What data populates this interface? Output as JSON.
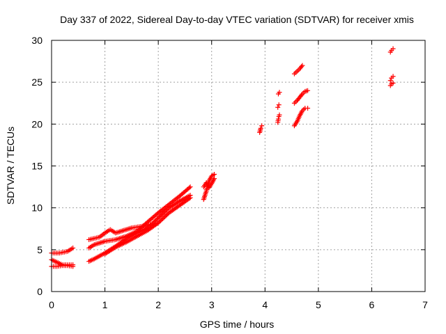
{
  "chart_data": {
    "type": "scatter",
    "title": "Day 337 of 2022, Sidereal Day-to-day VTEC variation (SDTVAR) for receiver xmis",
    "xlabel": "GPS time / hours",
    "ylabel": "SDTVAR / TECUs",
    "xlim": [
      0,
      7
    ],
    "ylim": [
      0,
      30
    ],
    "xticks": [
      "0",
      "1",
      "2",
      "3",
      "4",
      "5",
      "6",
      "7"
    ],
    "yticks": [
      "0",
      "5",
      "10",
      "15",
      "20",
      "25",
      "30"
    ],
    "grid": true,
    "marker": "plus",
    "color": "#ff0000",
    "segments": [
      {
        "x": [
          0.0,
          0.15,
          0.3,
          0.4
        ],
        "y": [
          4.6,
          4.6,
          4.8,
          5.2
        ]
      },
      {
        "x": [
          0.0,
          0.1,
          0.2,
          0.3,
          0.4
        ],
        "y": [
          3.8,
          3.5,
          3.2,
          3.2,
          3.2
        ]
      },
      {
        "x": [
          0.0,
          0.1,
          0.2,
          0.3,
          0.4
        ],
        "y": [
          3.0,
          3.0,
          3.1,
          3.1,
          3.0
        ]
      },
      {
        "x": [
          0.7,
          0.9,
          1.0,
          1.1,
          1.2,
          1.3,
          1.5,
          1.7,
          1.85
        ],
        "y": [
          6.2,
          6.5,
          7.0,
          7.4,
          7.0,
          7.2,
          7.6,
          7.8,
          8.0
        ]
      },
      {
        "x": [
          0.7,
          0.8,
          1.0,
          1.2,
          1.4,
          1.6,
          1.8,
          2.0,
          2.2,
          2.4,
          2.6
        ],
        "y": [
          5.2,
          5.6,
          6.0,
          6.2,
          6.6,
          7.2,
          8.3,
          9.4,
          10.4,
          11.4,
          12.5
        ]
      },
      {
        "x": [
          0.7,
          0.8,
          1.0,
          1.2,
          1.4,
          1.6,
          1.8,
          2.0,
          2.2,
          2.4,
          2.6
        ],
        "y": [
          3.6,
          3.9,
          4.6,
          5.4,
          6.3,
          7.0,
          7.6,
          8.8,
          10.0,
          10.8,
          11.5
        ]
      },
      {
        "x": [
          1.0,
          1.2,
          1.4,
          1.6,
          1.8,
          2.0,
          2.2,
          2.4,
          2.6
        ],
        "y": [
          4.5,
          5.3,
          5.9,
          6.6,
          7.3,
          8.2,
          9.4,
          10.3,
          11.2
        ]
      },
      {
        "x": [
          2.85,
          2.9,
          2.95,
          3.0,
          3.05
        ],
        "y": [
          11.0,
          12.0,
          13.2,
          13.8,
          14.0
        ]
      },
      {
        "x": [
          2.85,
          2.9,
          2.95,
          3.0,
          3.05
        ],
        "y": [
          12.5,
          13.0,
          12.4,
          12.9,
          13.5
        ]
      },
      {
        "x": [
          3.9,
          3.92,
          3.94
        ],
        "y": [
          19.0,
          19.5,
          19.8
        ]
      },
      {
        "x": [
          4.25,
          4.27
        ],
        "y": [
          23.6,
          23.8
        ]
      },
      {
        "x": [
          4.24,
          4.26
        ],
        "y": [
          22.0,
          22.3
        ]
      },
      {
        "x": [
          4.24,
          4.25,
          4.26,
          4.27
        ],
        "y": [
          20.2,
          20.6,
          20.9,
          21.1
        ]
      },
      {
        "x": [
          4.55,
          4.6,
          4.65,
          4.7
        ],
        "y": [
          26.0,
          26.3,
          26.6,
          27.0
        ]
      },
      {
        "x": [
          4.55,
          4.6,
          4.65,
          4.7,
          4.75,
          4.8
        ],
        "y": [
          22.5,
          22.8,
          23.2,
          23.6,
          23.9,
          24.0
        ]
      },
      {
        "x": [
          4.55,
          4.6,
          4.65,
          4.7,
          4.75,
          4.8
        ],
        "y": [
          19.8,
          20.3,
          21.0,
          21.6,
          21.9,
          21.9
        ]
      },
      {
        "x": [
          6.35,
          6.37,
          6.4
        ],
        "y": [
          28.6,
          28.8,
          29.0
        ]
      },
      {
        "x": [
          6.35,
          6.37,
          6.4
        ],
        "y": [
          25.2,
          25.5,
          25.7
        ]
      },
      {
        "x": [
          6.35,
          6.37,
          6.4
        ],
        "y": [
          24.6,
          24.8,
          24.9
        ]
      }
    ]
  }
}
